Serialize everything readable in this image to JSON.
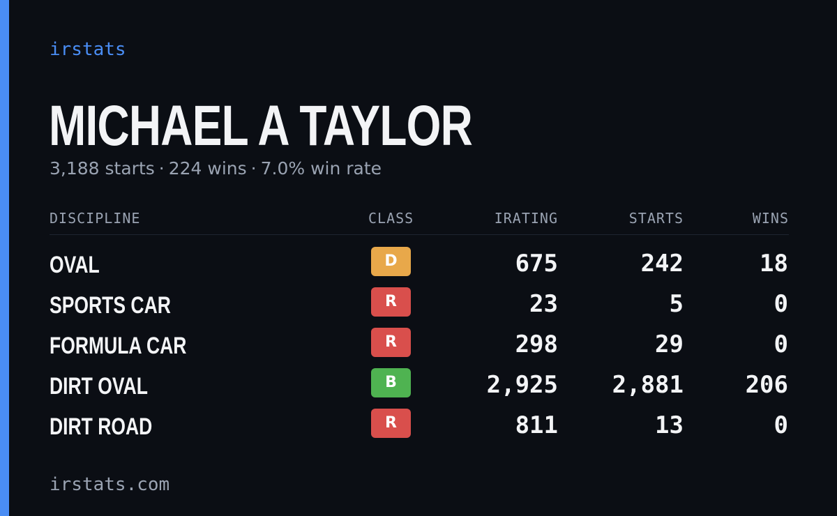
{
  "brand": "irstats",
  "driver": {
    "name": "MICHAEL A TAYLOR",
    "starts": "3,188 starts",
    "wins": "224 wins",
    "win_rate": "7.0% win rate",
    "separator": "·"
  },
  "table": {
    "headers": {
      "discipline": "DISCIPLINE",
      "class": "CLASS",
      "irating": "IRATING",
      "starts": "STARTS",
      "wins": "WINS"
    },
    "rows": [
      {
        "discipline": "OVAL",
        "class": "D",
        "class_color": "#e8a84a",
        "irating": "675",
        "starts": "242",
        "wins": "18"
      },
      {
        "discipline": "SPORTS CAR",
        "class": "R",
        "class_color": "#d94f4c",
        "irating": "23",
        "starts": "5",
        "wins": "0"
      },
      {
        "discipline": "FORMULA CAR",
        "class": "R",
        "class_color": "#d94f4c",
        "irating": "298",
        "starts": "29",
        "wins": "0"
      },
      {
        "discipline": "DIRT OVAL",
        "class": "B",
        "class_color": "#4fb351",
        "irating": "2,925",
        "starts": "2,881",
        "wins": "206"
      },
      {
        "discipline": "DIRT ROAD",
        "class": "R",
        "class_color": "#d94f4c",
        "irating": "811",
        "starts": "13",
        "wins": "0"
      }
    ]
  },
  "footer": "irstats.com",
  "colors": {
    "accent": "#4a8df4",
    "background": "#0b0e14",
    "text_primary": "#f3f4f6",
    "text_secondary": "#9aa3b2"
  }
}
